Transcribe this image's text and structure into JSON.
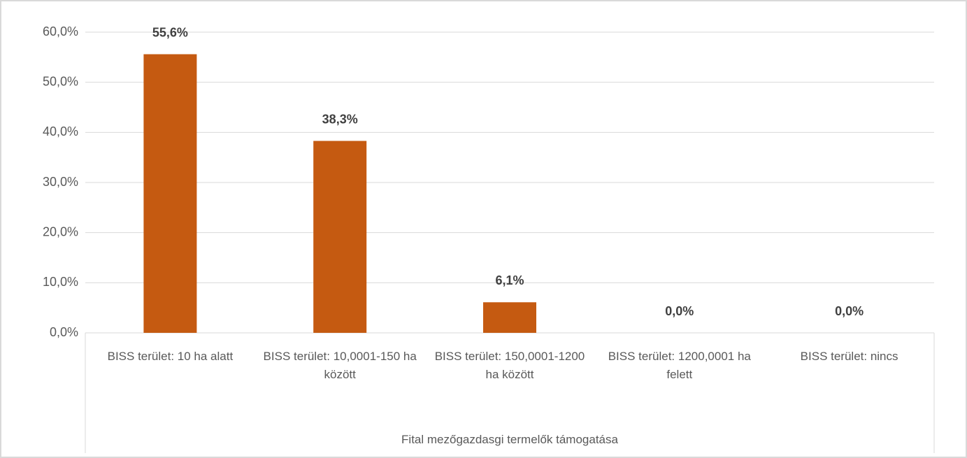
{
  "chart_data": {
    "type": "bar",
    "xlabel": "Fital mezőgazdasgi termelők támogatása",
    "categories": [
      "BISS terület: 10 ha alatt",
      "BISS terület: 10,0001-150 ha között",
      "BISS terület: 150,0001-1200 ha között",
      "BISS terület: 1200,0001 ha felett",
      "BISS terület: nincs"
    ],
    "values": [
      55.6,
      38.3,
      6.1,
      0,
      0
    ],
    "value_labels": [
      "55,6%",
      "38,3%",
      "6,1%",
      "0,0%",
      "0,0%"
    ],
    "color": "#c55a11",
    "ylim": [
      0,
      60
    ],
    "yticks": [
      {
        "value": 0,
        "label": "0,0%"
      },
      {
        "value": 10,
        "label": "10,0%"
      },
      {
        "value": 20,
        "label": "20,0%"
      },
      {
        "value": 30,
        "label": "30,0%"
      },
      {
        "value": 40,
        "label": "40,0%"
      },
      {
        "value": 50,
        "label": "50,0%"
      },
      {
        "value": 60,
        "label": "60,0%"
      }
    ],
    "grid": true
  }
}
